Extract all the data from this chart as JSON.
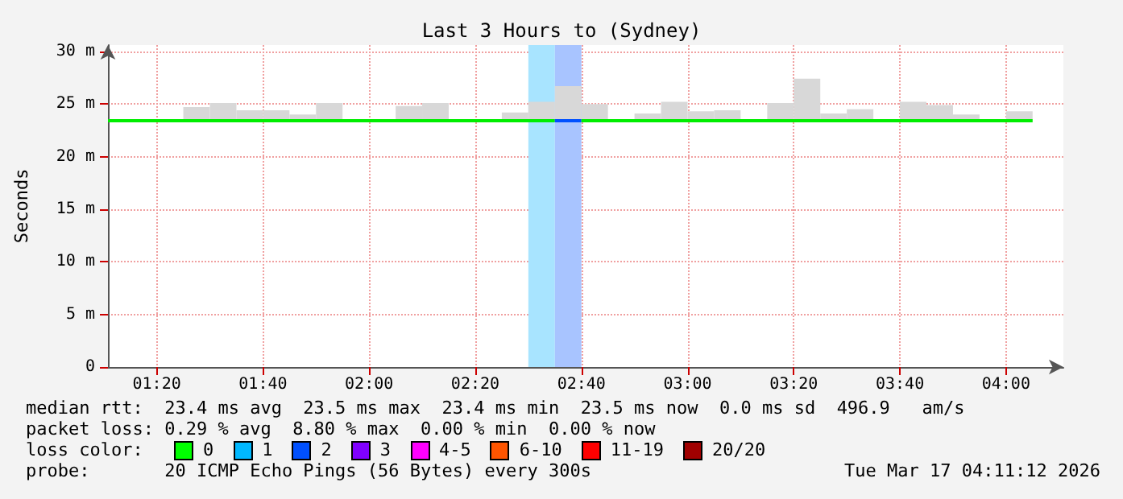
{
  "chart_data": {
    "type": "line",
    "title": "Last 3 Hours to (Sydney)",
    "ylabel": "Seconds",
    "xlim": [
      1.18,
      4.18
    ],
    "xticks": [
      {
        "value": 1.3333,
        "label": "01:20"
      },
      {
        "value": 1.6667,
        "label": "01:40"
      },
      {
        "value": 2,
        "label": "02:00"
      },
      {
        "value": 2.3333,
        "label": "02:20"
      },
      {
        "value": 2.6667,
        "label": "02:40"
      },
      {
        "value": 3,
        "label": "03:00"
      },
      {
        "value": 3.3333,
        "label": "03:20"
      },
      {
        "value": 3.6667,
        "label": "03:40"
      },
      {
        "value": 4,
        "label": "04:00"
      }
    ],
    "ylim": [
      0,
      30.6
    ],
    "yticks": [
      0,
      {
        "value": 5,
        "label": "5 m"
      },
      {
        "value": 10,
        "label": "10 m"
      },
      {
        "value": 15,
        "label": "15 m"
      },
      {
        "value": 20,
        "label": "20 m"
      },
      {
        "value": 25,
        "label": "25 m"
      },
      {
        "value": 30,
        "label": "30 m"
      }
    ],
    "grid": true,
    "series": [
      {
        "type": "bar",
        "color": "#d8d8d8",
        "x": [
          1.4583,
          1.5417,
          1.625,
          1.7083,
          1.7917,
          1.875,
          2.125,
          2.2083,
          2.4583,
          2.5417,
          2.625,
          2.7083,
          2.875,
          2.9583,
          3.0417,
          3.125,
          3.2917,
          3.375,
          3.4583,
          3.5417,
          3.7083,
          3.7917,
          3.875,
          4.0417
        ],
        "base": [
          23.3,
          23.3,
          23.3,
          23.3,
          23.3,
          23.3,
          23.3,
          23.3,
          23.3,
          23.3,
          23.3,
          23.3,
          23.3,
          23.3,
          23.3,
          23.3,
          23.3,
          23.3,
          23.3,
          23.3,
          23.3,
          23.3,
          23.3,
          23.3
        ],
        "values": [
          1.4,
          1.8,
          1.1,
          1.1,
          0.7,
          1.8,
          1.5,
          1.8,
          0.9,
          1.9,
          3.4,
          1.7,
          0.8,
          1.9,
          1,
          1.1,
          1.8,
          4.1,
          0.8,
          1.2,
          1.9,
          1.6,
          0.7,
          1
        ]
      },
      {
        "color": "#00ee00",
        "x": [
          1.18,
          2.5833
        ],
        "values": [
          23.4,
          23.4
        ]
      },
      {
        "color": "#0050ff",
        "x": [
          2.5833,
          2.6667
        ],
        "values": [
          23.4,
          23.4
        ]
      },
      {
        "color": "#00ee00",
        "x": [
          2.6667,
          4.0833
        ],
        "values": [
          23.4,
          23.4
        ]
      }
    ],
    "bands": [
      {
        "axis": "x",
        "from": 2.5,
        "to": 2.5833,
        "color": "#a8e4ff"
      },
      {
        "axis": "x",
        "from": 2.5833,
        "to": 2.6667,
        "color": "#a8c4ff"
      }
    ],
    "annotations": [
      "median rtt:  23.4 ms avg  23.5 ms max  23.4 ms min  23.5 ms now  0.0 ms sd  496.9   am/s",
      "packet loss: 0.29 % avg  8.80 % max  0.00 % min  0.00 % now",
      "loss color:",
      "0",
      "1",
      "2",
      "3",
      "4-5",
      "6-10",
      "11-19",
      "20/20",
      "probe:       20 ICMP Echo Pings (56 Bytes) every 300s",
      "Tue Mar 17 04:11:12 2026"
    ]
  }
}
